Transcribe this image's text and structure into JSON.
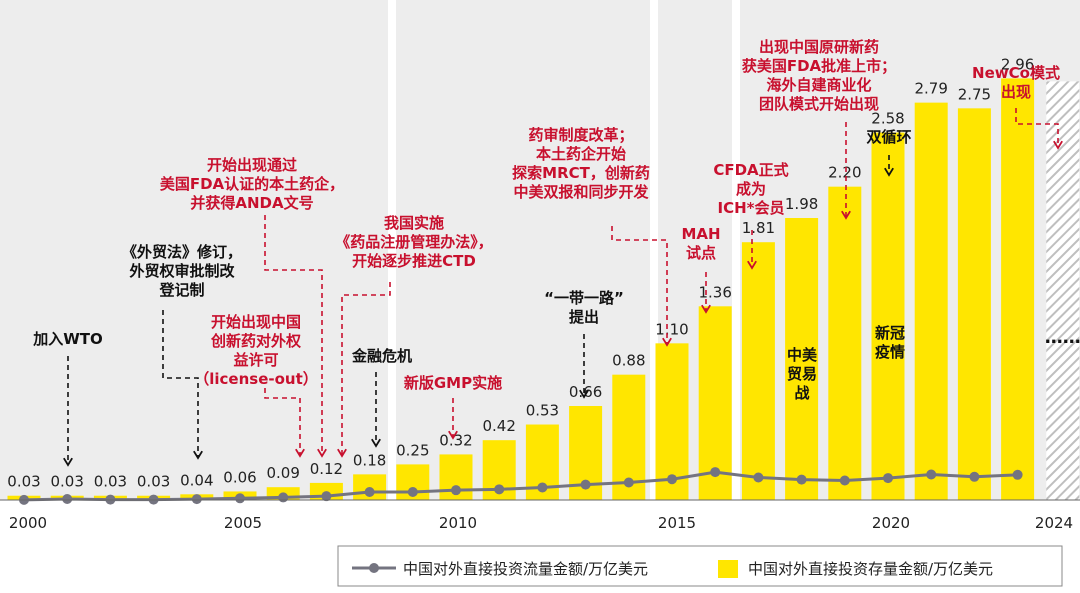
{
  "chart_data": {
    "type": "bar",
    "x_ticks": [
      "2000",
      "2005",
      "2010",
      "2015",
      "2020",
      "2024"
    ],
    "years": [
      2000,
      2001,
      2002,
      2003,
      2004,
      2005,
      2006,
      2007,
      2008,
      2009,
      2010,
      2011,
      2012,
      2013,
      2014,
      2015,
      2016,
      2017,
      2018,
      2019,
      2020,
      2021,
      2022,
      2023
    ],
    "stock_values": [
      0.03,
      0.03,
      0.03,
      0.03,
      0.04,
      0.06,
      0.09,
      0.12,
      0.18,
      0.25,
      0.32,
      0.42,
      0.53,
      0.66,
      0.88,
      1.1,
      1.36,
      1.81,
      1.98,
      2.2,
      2.58,
      2.79,
      2.75,
      2.96
    ],
    "stock_labels": [
      "0.03",
      "0.03",
      "0.03",
      "0.03",
      "0.04",
      "0.06",
      "0.09",
      "0.12",
      "0.18",
      "0.25",
      "0.32",
      "0.42",
      "0.53",
      "0.66",
      "0.88",
      "1.10",
      "1.36",
      "1.81",
      "1.98",
      "2.20",
      "2.58",
      "2.79",
      "2.75",
      "2.96"
    ],
    "flow_values": [
      0.001,
      0.007,
      0.003,
      0.003,
      0.006,
      0.012,
      0.018,
      0.027,
      0.056,
      0.056,
      0.069,
      0.075,
      0.088,
      0.108,
      0.123,
      0.146,
      0.196,
      0.158,
      0.143,
      0.137,
      0.154,
      0.179,
      0.163,
      0.177
    ],
    "forecast_year": 2024,
    "forecast_marker": "……",
    "ylim": [
      0,
      3.3
    ],
    "legend": {
      "flow": "中国对外直接投资流量金额/万亿美元",
      "stock": "中国对外直接投资存量金额/万亿美元"
    },
    "colors": {
      "bar": "#FFE600",
      "line": "#747480",
      "panel": "#EDEDED",
      "red": "#C8102E",
      "black": "#111111",
      "hatch": "#BFBFBF"
    },
    "annotations": [
      {
        "id": "wto",
        "lines": [
          "加入WTO"
        ],
        "color": "black"
      },
      {
        "id": "foreign-trade-law",
        "lines": [
          "《外贸法》修订，",
          "外贸权审批制改",
          "登记制"
        ],
        "color": "black"
      },
      {
        "id": "fda-anda",
        "lines": [
          "开始出现通过",
          "美国FDA认证的本土药企，",
          "并获得ANDA文号"
        ],
        "color": "red"
      },
      {
        "id": "license-out",
        "lines": [
          "开始出现中国",
          "创新药对外权",
          "益许可",
          "（license-out）"
        ],
        "color": "red"
      },
      {
        "id": "drug-reg",
        "lines": [
          "我国实施",
          "《药品注册管理办法》，",
          "开始逐步推进CTD"
        ],
        "color": "red"
      },
      {
        "id": "financial-crisis",
        "lines": [
          "金融危机"
        ],
        "color": "black"
      },
      {
        "id": "gmp",
        "lines": [
          "新版GMP实施"
        ],
        "color": "red"
      },
      {
        "id": "belt-road",
        "lines": [
          "“一带一路”",
          "提出"
        ],
        "color": "black"
      },
      {
        "id": "review-reform",
        "lines": [
          "药审制度改革；",
          "本土药企开始",
          "探索MRCT，创新药",
          "中美双报和同步开发"
        ],
        "color": "red"
      },
      {
        "id": "mah",
        "lines": [
          "MAH",
          "试点"
        ],
        "color": "red"
      },
      {
        "id": "cfda-ich",
        "lines": [
          "CFDA正式",
          "成为",
          "ICH*会员"
        ],
        "color": "red"
      },
      {
        "id": "trade-war",
        "lines": [
          "中美",
          "贸易",
          "战"
        ],
        "color": "black"
      },
      {
        "id": "original-drug",
        "lines": [
          "出现中国原研新药",
          "获美国FDA批准上市；",
          "海外自建商业化",
          "团队模式开始出现"
        ],
        "color": "red"
      },
      {
        "id": "dual-circ",
        "lines": [
          "双循环"
        ],
        "color": "black"
      },
      {
        "id": "covid",
        "lines": [
          "新冠",
          "疫情"
        ],
        "color": "black"
      },
      {
        "id": "newco",
        "lines": [
          "NewCo模式",
          "出现"
        ],
        "color": "red"
      }
    ]
  }
}
